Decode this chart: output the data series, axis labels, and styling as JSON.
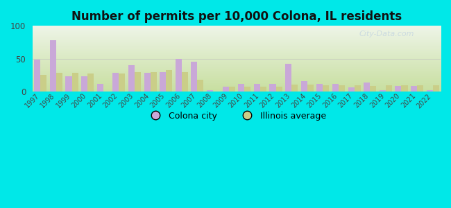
{
  "title": "Number of permits per 10,000 Colona, IL residents",
  "years": [
    1997,
    1998,
    1999,
    2000,
    2001,
    2002,
    2003,
    2004,
    2005,
    2006,
    2007,
    2008,
    2009,
    2010,
    2011,
    2012,
    2013,
    2014,
    2015,
    2016,
    2017,
    2018,
    2019,
    2020,
    2021,
    2022
  ],
  "colona": [
    49,
    78,
    23,
    23,
    12,
    28,
    40,
    28,
    30,
    50,
    45,
    2,
    7,
    11,
    11,
    11,
    42,
    16,
    11,
    11,
    6,
    14,
    2,
    8,
    8,
    2
  ],
  "illinois": [
    25,
    28,
    28,
    27,
    0,
    27,
    30,
    30,
    33,
    30,
    18,
    0,
    7,
    7,
    7,
    7,
    10,
    10,
    9,
    9,
    9,
    8,
    9,
    9,
    9,
    9
  ],
  "colona_color": "#c9a8d8",
  "illinois_color": "#cace88",
  "background_outer": "#00e8e8",
  "grad_top": "#eef5e8",
  "grad_bottom": "#c8dfa0",
  "ylim": [
    0,
    100
  ],
  "yticks": [
    0,
    50,
    100
  ],
  "legend_colona": "Colona city",
  "legend_illinois": "Illinois average",
  "watermark": "City-Data.com",
  "title_fontsize": 12,
  "bar_width": 0.4
}
